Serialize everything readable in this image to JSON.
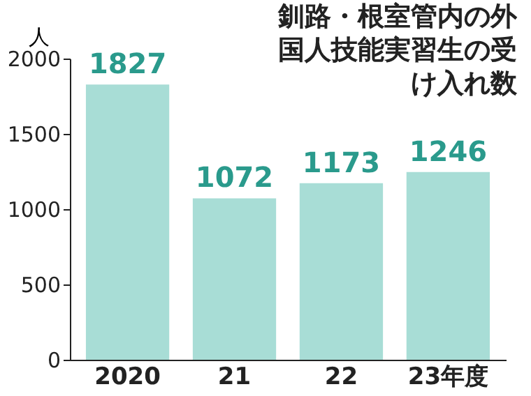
{
  "chart_data": {
    "type": "bar",
    "title": "釧路・根室管内の外国人技能実習生の受け入れ数",
    "ylabel": "人",
    "categories": [
      "2020",
      "21",
      "22",
      "23年度"
    ],
    "values": [
      1827,
      1072,
      1173,
      1246
    ],
    "color": "#a8ddd6",
    "ylim": [
      0,
      2000
    ],
    "yticks": [
      0,
      500,
      1000,
      1500,
      2000
    ],
    "data_labels": true,
    "grid": false
  }
}
